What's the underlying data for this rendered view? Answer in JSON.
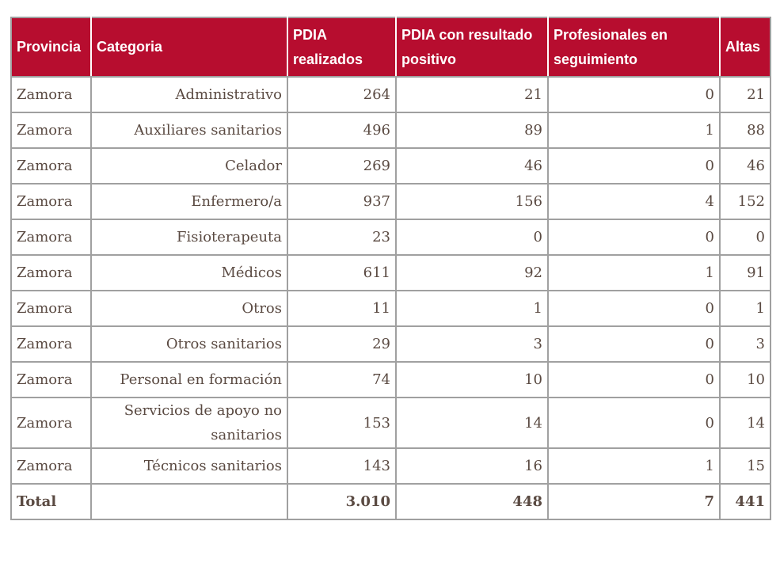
{
  "headers": [
    "Provincia",
    "Categoria",
    "PDIA realizados",
    "PDIA con resultado positivo",
    "Profesionales en seguimiento",
    "Altas"
  ],
  "rows": [
    [
      "Zamora",
      "Administrativo",
      "264",
      "21",
      "0",
      "21"
    ],
    [
      "Zamora",
      "Auxiliares sanitarios",
      "496",
      "89",
      "1",
      "88"
    ],
    [
      "Zamora",
      "Celador",
      "269",
      "46",
      "0",
      "46"
    ],
    [
      "Zamora",
      "Enfermero/a",
      "937",
      "156",
      "4",
      "152"
    ],
    [
      "Zamora",
      "Fisioterapeuta",
      "23",
      "0",
      "0",
      "0"
    ],
    [
      "Zamora",
      "Médicos",
      "611",
      "92",
      "1",
      "91"
    ],
    [
      "Zamora",
      "Otros",
      "11",
      "1",
      "0",
      "1"
    ],
    [
      "Zamora",
      "Otros sanitarios",
      "29",
      "3",
      "0",
      "3"
    ],
    [
      "Zamora",
      "Personal en formación",
      "74",
      "10",
      "0",
      "10"
    ],
    [
      "Zamora",
      "Servicios de apoyo no sanitarios",
      "153",
      "14",
      "0",
      "14"
    ],
    [
      "Zamora",
      "Técnicos sanitarios",
      "143",
      "16",
      "1",
      "15"
    ]
  ],
  "total": [
    "Total",
    "",
    "3.010",
    "448",
    "7",
    "441"
  ],
  "colors": {
    "header_bg": "#b70d2f",
    "text": "#5a4a42",
    "border": "#a0a0a0"
  }
}
